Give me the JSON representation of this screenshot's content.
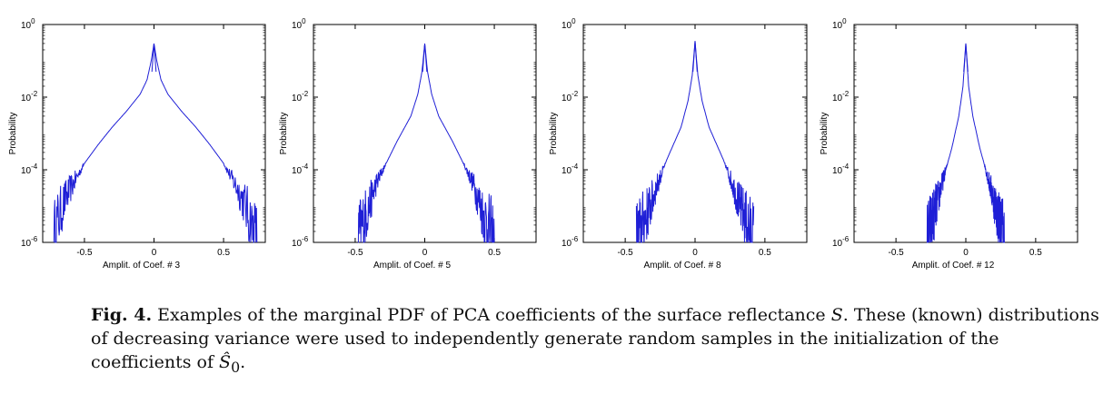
{
  "chart_data": [
    {
      "type": "line",
      "xlabel": "Amplit. of Coef. # 3",
      "ylabel": "Probability",
      "xlim": [
        -0.8,
        0.8
      ],
      "ylim": [
        1e-06,
        1
      ],
      "yscale": "log",
      "xticks": [
        "-0.5",
        "0",
        "0.5"
      ],
      "yticks": [
        {
          "base": "10",
          "exp": "0"
        },
        {
          "base": "10",
          "exp": "-2"
        },
        {
          "base": "10",
          "exp": "-4"
        },
        {
          "base": "10",
          "exp": "-6"
        }
      ],
      "series": [
        {
          "color": "#1f1fd6",
          "peak": 0.3,
          "points": [
            {
              "x": -0.72,
              "y": 1e-06
            },
            {
              "x": -0.7,
              "y": 3e-06
            },
            {
              "x": -0.65,
              "y": 1.2e-05
            },
            {
              "x": -0.6,
              "y": 3e-05
            },
            {
              "x": -0.5,
              "y": 0.00015
            },
            {
              "x": -0.4,
              "y": 0.0005
            },
            {
              "x": -0.3,
              "y": 0.0015
            },
            {
              "x": -0.2,
              "y": 0.004
            },
            {
              "x": -0.1,
              "y": 0.012
            },
            {
              "x": -0.05,
              "y": 0.03
            },
            {
              "x": -0.02,
              "y": 0.1
            },
            {
              "x": 0,
              "y": 0.3
            },
            {
              "x": 0.02,
              "y": 0.1
            },
            {
              "x": 0.05,
              "y": 0.03
            },
            {
              "x": 0.1,
              "y": 0.012
            },
            {
              "x": 0.2,
              "y": 0.004
            },
            {
              "x": 0.3,
              "y": 0.0015
            },
            {
              "x": 0.4,
              "y": 0.0005
            },
            {
              "x": 0.5,
              "y": 0.00015
            },
            {
              "x": 0.6,
              "y": 3e-05
            },
            {
              "x": 0.65,
              "y": 1.2e-05
            },
            {
              "x": 0.7,
              "y": 3e-06
            },
            {
              "x": 0.74,
              "y": 1e-06
            }
          ]
        }
      ]
    },
    {
      "type": "line",
      "xlabel": "Amplit. of Coef. # 5",
      "ylabel": "Probability",
      "xlim": [
        -0.8,
        0.8
      ],
      "ylim": [
        1e-06,
        1
      ],
      "yscale": "log",
      "xticks": [
        "-0.5",
        "0",
        "0.5"
      ],
      "yticks": [
        {
          "base": "10",
          "exp": "0"
        },
        {
          "base": "10",
          "exp": "-2"
        },
        {
          "base": "10",
          "exp": "-4"
        },
        {
          "base": "10",
          "exp": "-6"
        }
      ],
      "series": [
        {
          "color": "#1f1fd6",
          "peak": 0.3,
          "points": [
            {
              "x": -0.48,
              "y": 1e-06
            },
            {
              "x": -0.45,
              "y": 3e-06
            },
            {
              "x": -0.4,
              "y": 1e-05
            },
            {
              "x": -0.35,
              "y": 4e-05
            },
            {
              "x": -0.3,
              "y": 0.0001
            },
            {
              "x": -0.2,
              "y": 0.0006
            },
            {
              "x": -0.1,
              "y": 0.003
            },
            {
              "x": -0.05,
              "y": 0.012
            },
            {
              "x": -0.02,
              "y": 0.05
            },
            {
              "x": 0,
              "y": 0.3
            },
            {
              "x": 0.02,
              "y": 0.05
            },
            {
              "x": 0.05,
              "y": 0.012
            },
            {
              "x": 0.1,
              "y": 0.003
            },
            {
              "x": 0.2,
              "y": 0.0006
            },
            {
              "x": 0.3,
              "y": 0.0001
            },
            {
              "x": 0.35,
              "y": 4e-05
            },
            {
              "x": 0.4,
              "y": 1e-05
            },
            {
              "x": 0.45,
              "y": 3e-06
            },
            {
              "x": 0.5,
              "y": 1e-06
            }
          ]
        }
      ]
    },
    {
      "type": "line",
      "xlabel": "Amplit. of Coef. # 8",
      "ylabel": "Probability",
      "xlim": [
        -0.8,
        0.8
      ],
      "ylim": [
        1e-06,
        1
      ],
      "yscale": "log",
      "xticks": [
        "-0.5",
        "0",
        "0.5"
      ],
      "yticks": [
        {
          "base": "10",
          "exp": "0"
        },
        {
          "base": "10",
          "exp": "-2"
        },
        {
          "base": "10",
          "exp": "-4"
        },
        {
          "base": "10",
          "exp": "-6"
        }
      ],
      "series": [
        {
          "color": "#1f1fd6",
          "peak": 0.35,
          "points": [
            {
              "x": -0.42,
              "y": 1e-06
            },
            {
              "x": -0.38,
              "y": 3e-06
            },
            {
              "x": -0.32,
              "y": 1e-05
            },
            {
              "x": -0.28,
              "y": 3e-05
            },
            {
              "x": -0.2,
              "y": 0.0002
            },
            {
              "x": -0.1,
              "y": 0.0015
            },
            {
              "x": -0.05,
              "y": 0.008
            },
            {
              "x": -0.02,
              "y": 0.04
            },
            {
              "x": 0,
              "y": 0.35
            },
            {
              "x": 0.02,
              "y": 0.04
            },
            {
              "x": 0.05,
              "y": 0.008
            },
            {
              "x": 0.1,
              "y": 0.0015
            },
            {
              "x": 0.2,
              "y": 0.0002
            },
            {
              "x": 0.28,
              "y": 3e-05
            },
            {
              "x": 0.32,
              "y": 1e-05
            },
            {
              "x": 0.38,
              "y": 3e-06
            },
            {
              "x": 0.42,
              "y": 1e-06
            }
          ]
        }
      ]
    },
    {
      "type": "line",
      "xlabel": "Amplit. of Coef. # 12",
      "ylabel": "Probability",
      "xlim": [
        -0.8,
        0.8
      ],
      "ylim": [
        1e-06,
        1
      ],
      "yscale": "log",
      "xticks": [
        "-0.5",
        "0",
        "0.5"
      ],
      "yticks": [
        {
          "base": "10",
          "exp": "0"
        },
        {
          "base": "10",
          "exp": "-2"
        },
        {
          "base": "10",
          "exp": "-4"
        },
        {
          "base": "10",
          "exp": "-6"
        }
      ],
      "series": [
        {
          "color": "#1f1fd6",
          "peak": 0.3,
          "points": [
            {
              "x": -0.28,
              "y": 1e-06
            },
            {
              "x": -0.25,
              "y": 3e-06
            },
            {
              "x": -0.2,
              "y": 1.5e-05
            },
            {
              "x": -0.15,
              "y": 8e-05
            },
            {
              "x": -0.1,
              "y": 0.0004
            },
            {
              "x": -0.05,
              "y": 0.003
            },
            {
              "x": -0.02,
              "y": 0.02
            },
            {
              "x": 0,
              "y": 0.3
            },
            {
              "x": 0.02,
              "y": 0.02
            },
            {
              "x": 0.05,
              "y": 0.003
            },
            {
              "x": 0.1,
              "y": 0.0004
            },
            {
              "x": 0.15,
              "y": 8e-05
            },
            {
              "x": 0.2,
              "y": 1.5e-05
            },
            {
              "x": 0.25,
              "y": 3e-06
            },
            {
              "x": 0.28,
              "y": 1e-06
            }
          ]
        }
      ]
    }
  ],
  "caption": {
    "label": "Fig. 4.",
    "text_before_S": " Examples of the marginal PDF of PCA coefficients of the surface reflectance ",
    "symbol_S": "S",
    "text_after_S": ". These (known) distributions of decreasing variance were used to independently generate random samples in the initialization of the coefficients of ",
    "symbol_S0": "Ŝ",
    "symbol_S0_sub": "0",
    "text_end": "."
  }
}
